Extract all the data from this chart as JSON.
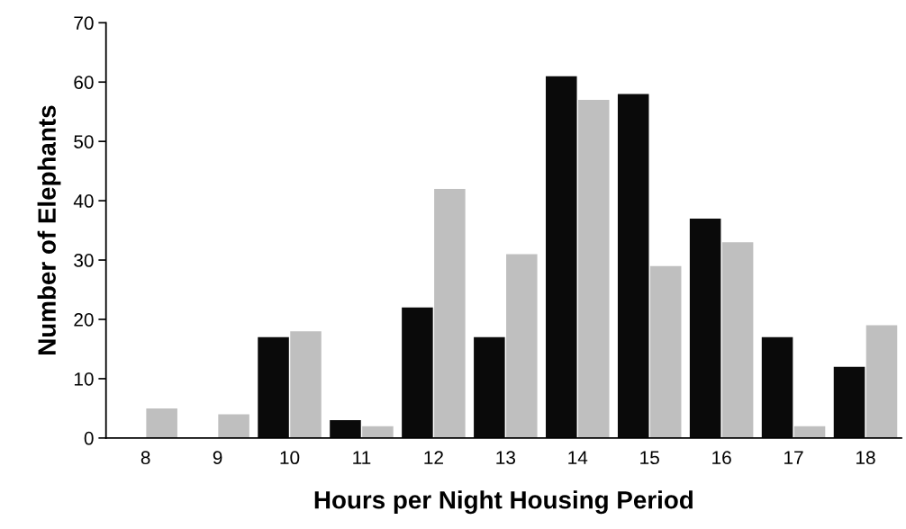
{
  "chart_data": {
    "type": "bar",
    "xlabel": "Hours per Night Housing Period",
    "ylabel": "Number of Elephants",
    "categories": [
      "8",
      "9",
      "10",
      "11",
      "12",
      "13",
      "14",
      "15",
      "16",
      "17",
      "18"
    ],
    "series": [
      {
        "color": "#0a0a0a",
        "values": [
          0,
          0,
          17,
          3,
          22,
          17,
          61,
          58,
          37,
          17,
          12
        ]
      },
      {
        "color": "#bfbfbf",
        "values": [
          5,
          4,
          18,
          2,
          42,
          31,
          57,
          29,
          33,
          2,
          19
        ]
      }
    ],
    "ylim": [
      0,
      70
    ],
    "yticks": [
      0,
      10,
      20,
      30,
      40,
      50,
      60,
      70
    ],
    "grid": false,
    "legend": false
  }
}
